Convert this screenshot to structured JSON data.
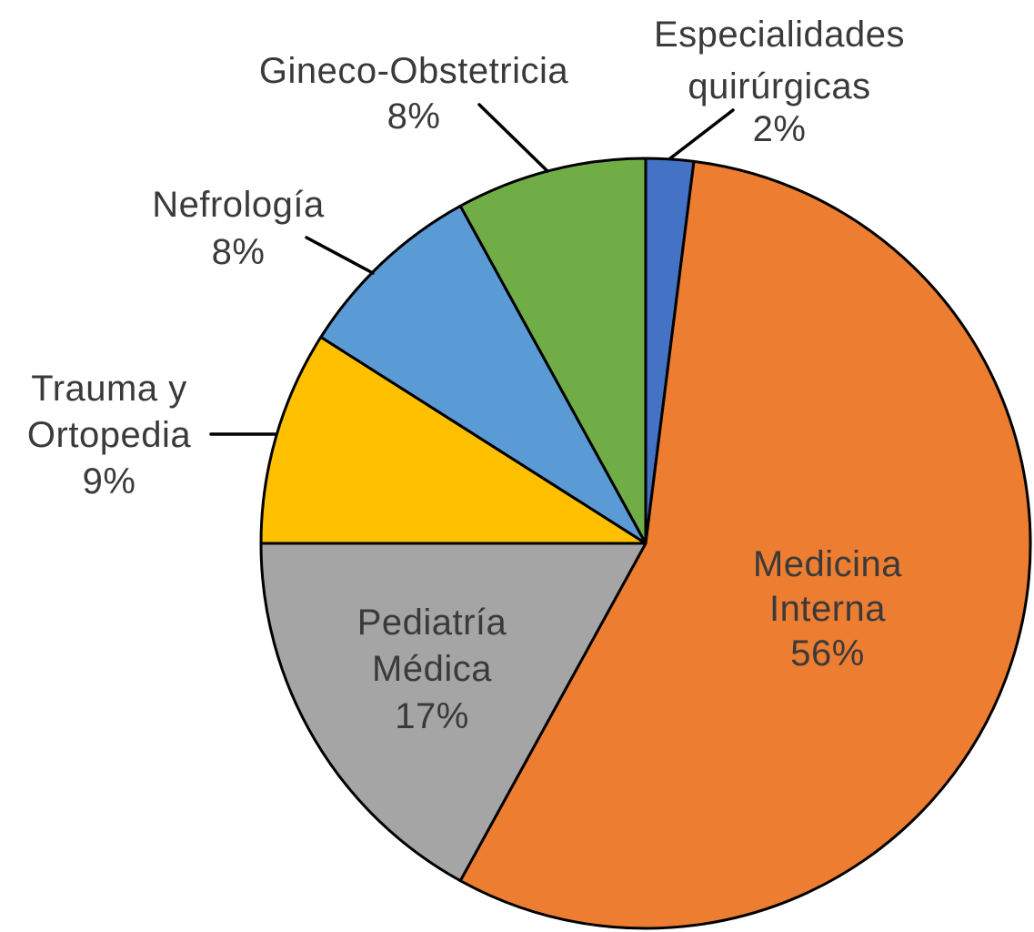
{
  "page": {
    "background_color": "#ffffff",
    "text_color": "#3a3a3a",
    "outline_color": "#000000"
  },
  "chart_data": {
    "type": "pie",
    "title": "",
    "start_angle_deg": 0,
    "direction": "clockwise",
    "legend": "none",
    "labels_show": "category name and percentage",
    "slices": [
      {
        "label": "Especialidades quirúrgicas",
        "label_lines": [
          "Especialidades",
          "quirúrgicas"
        ],
        "pct_label": "2%",
        "value": 2,
        "color": "#4472C4",
        "label_placement": "outside-with-leader"
      },
      {
        "label": "Medicina Interna",
        "label_lines": [
          "Medicina",
          "Interna"
        ],
        "pct_label": "56%",
        "value": 56,
        "color": "#ED7D31",
        "label_placement": "inside"
      },
      {
        "label": "Pediatría Médica",
        "label_lines": [
          "Pediatría",
          "Médica"
        ],
        "pct_label": "17%",
        "value": 17,
        "color": "#A5A5A5",
        "label_placement": "inside"
      },
      {
        "label": "Trauma y Ortopedia",
        "label_lines": [
          "Trauma y",
          "Ortopedia"
        ],
        "pct_label": "9%",
        "value": 9,
        "color": "#FFC000",
        "label_placement": "outside-with-leader"
      },
      {
        "label": "Nefrología",
        "label_lines": [
          "Nefrología"
        ],
        "pct_label": "8%",
        "value": 8,
        "color": "#5B9BD5",
        "label_placement": "outside-with-leader"
      },
      {
        "label": "Gineco-Obstetricia",
        "label_lines": [
          "Gineco-Obstetricia"
        ],
        "pct_label": "8%",
        "value": 8,
        "color": "#70AD47",
        "label_placement": "outside-with-leader"
      }
    ]
  }
}
